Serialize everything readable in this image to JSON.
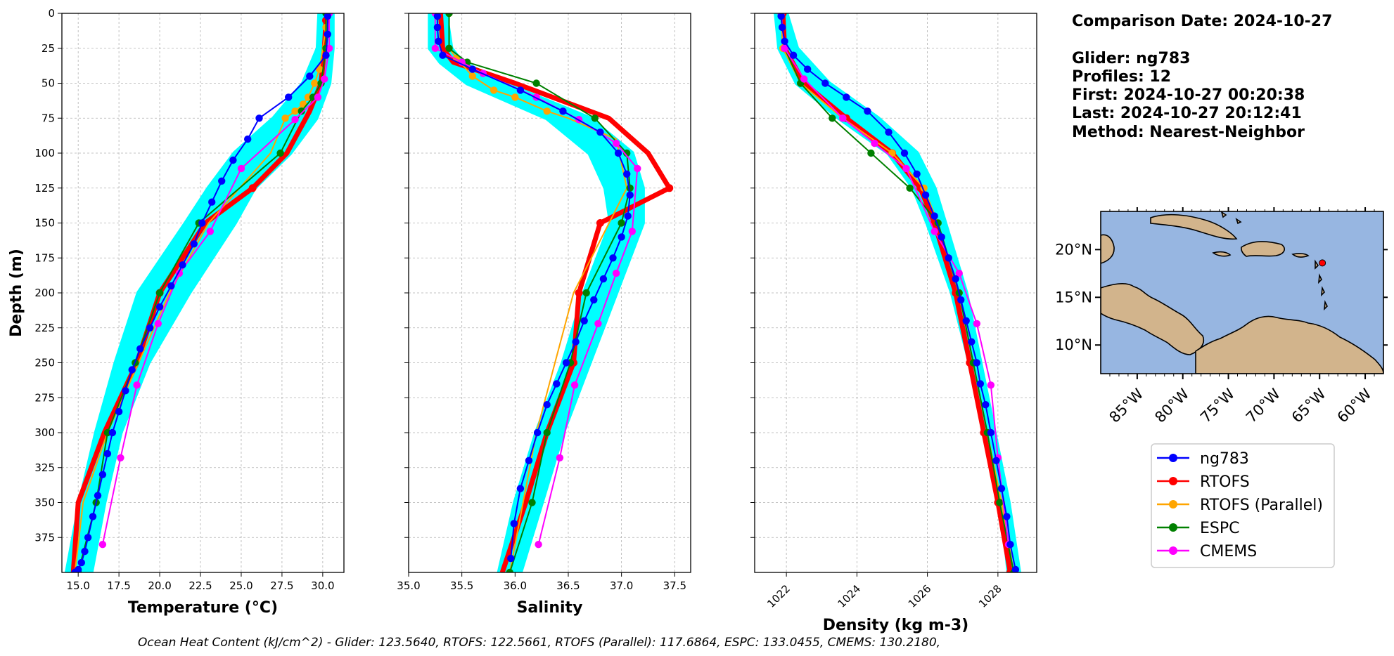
{
  "header_info": {
    "comparison": "Comparison Date: 2024-10-27",
    "glider": "Glider: ng783",
    "profiles": "Profiles: 12",
    "first": "First: 2024-10-27 00:20:38",
    "last": "Last: 2024-10-27 20:12:41",
    "method": "Method: Nearest-Neighbor"
  },
  "footer": "Ocean Heat Content (kJ/cm^2) - Glider: 123.5640,  RTOFS: 122.5661,  RTOFS (Parallel): 117.6864,  ESPC: 133.0455,  CMEMS: 130.2180,",
  "colors": {
    "glider": "#0000ff",
    "rtofs": "#ff0000",
    "rtofs_parallel": "#ffa500",
    "espc": "#008000",
    "cmems": "#ff00ff",
    "glider_band": "#00ffff",
    "ocean": "#97b6e1",
    "land": "#d2b48c"
  },
  "legend": [
    {
      "label": "ng783",
      "key": "glider"
    },
    {
      "label": "RTOFS",
      "key": "rtofs"
    },
    {
      "label": "RTOFS (Parallel)",
      "key": "rtofs_parallel"
    },
    {
      "label": "ESPC",
      "key": "espc"
    },
    {
      "label": "CMEMS",
      "key": "cmems"
    }
  ],
  "chart_data": [
    {
      "type": "line",
      "xlabel": "Temperature (°C)",
      "ylabel": "Depth (m)",
      "xlim": [
        14.0,
        31.3
      ],
      "ylim": [
        400,
        0
      ],
      "xticks": [
        15.0,
        17.5,
        20.0,
        22.5,
        25.0,
        27.5,
        30.0
      ],
      "xtick_labels": [
        "15.0",
        "17.5",
        "20.0",
        "22.5",
        "25.0",
        "27.5",
        "30.0"
      ],
      "yticks": [
        0,
        25,
        50,
        75,
        100,
        125,
        150,
        175,
        200,
        225,
        250,
        275,
        300,
        325,
        350,
        375
      ],
      "grid": true,
      "glider_band": {
        "depth": [
          0,
          25,
          50,
          75,
          100,
          125,
          150,
          200,
          250,
          300,
          350,
          400
        ],
        "lo": [
          29.8,
          29.7,
          28.8,
          27.0,
          24.6,
          23.0,
          21.6,
          18.7,
          17.3,
          16.1,
          15.1,
          14.3
        ],
        "hi": [
          30.6,
          30.6,
          30.4,
          29.6,
          28.0,
          25.8,
          24.6,
          21.8,
          19.3,
          17.6,
          16.6,
          15.8
        ]
      },
      "series": [
        {
          "name": "ng783",
          "key": "glider",
          "x": [
            30.3,
            30.3,
            30.2,
            29.2,
            27.9,
            26.1,
            25.4,
            24.5,
            23.8,
            23.2,
            22.6,
            22.1,
            21.4,
            20.7,
            20.0,
            19.4,
            18.8,
            18.3,
            17.9,
            17.5,
            17.1,
            16.8,
            16.5,
            16.2,
            15.9,
            15.6,
            15.4,
            15.2,
            15.0,
            14.8
          ],
          "y": [
            2,
            15,
            30,
            45,
            60,
            75,
            90,
            105,
            120,
            135,
            150,
            165,
            180,
            195,
            210,
            225,
            240,
            255,
            270,
            285,
            300,
            315,
            330,
            345,
            360,
            375,
            385,
            393,
            398,
            400
          ]
        },
        {
          "name": "RTOFS",
          "key": "rtofs",
          "thick": true,
          "x": [
            30.2,
            30.1,
            29.9,
            29.2,
            27.8,
            25.7,
            22.8,
            20.0,
            18.6,
            16.6,
            15.0,
            14.7
          ],
          "y": [
            5,
            25,
            50,
            70,
            100,
            125,
            150,
            200,
            250,
            300,
            350,
            400
          ],
          "marker_y": [
            5,
            125,
            200
          ]
        },
        {
          "name": "RTOFS (Parallel)",
          "key": "rtofs_parallel",
          "x": [
            30.3,
            30.2,
            29.8,
            29.5,
            29.1,
            28.8,
            28.3,
            27.7,
            26.8,
            23.0,
            20.6,
            18.7,
            16.8,
            15.3,
            14.8
          ],
          "y": [
            2,
            10,
            40,
            50,
            60,
            65,
            70,
            75,
            100,
            150,
            200,
            250,
            300,
            350,
            400
          ],
          "marker_y": [
            2,
            10,
            40,
            50,
            60,
            65,
            70,
            75
          ]
        },
        {
          "name": "ESPC",
          "key": "espc",
          "x": [
            30.2,
            30.2,
            29.9,
            29.4,
            28.7,
            27.4,
            22.4,
            20.0,
            18.5,
            16.8,
            16.1,
            15.0
          ],
          "y": [
            0,
            25,
            50,
            60,
            70,
            100,
            150,
            200,
            250,
            300,
            350,
            400
          ]
        },
        {
          "name": "CMEMS",
          "key": "cmems",
          "x": [
            30.4,
            30.4,
            30.1,
            29.7,
            28.3,
            25.0,
            23.1,
            21.2,
            19.9,
            18.6,
            17.6,
            16.5
          ],
          "y": [
            0,
            25,
            47,
            60,
            76,
            111,
            156,
            186,
            222,
            266,
            318,
            380
          ]
        }
      ]
    },
    {
      "type": "line",
      "xlabel": "Salinity",
      "xlim": [
        35.0,
        37.65
      ],
      "ylim": [
        400,
        0
      ],
      "xticks": [
        35.0,
        35.5,
        36.0,
        36.5,
        37.0,
        37.5
      ],
      "xtick_labels": [
        "35.0",
        "35.5",
        "36.0",
        "36.5",
        "37.0",
        "37.5"
      ],
      "grid": true,
      "glider_band": {
        "depth": [
          0,
          25,
          35,
          50,
          75,
          100,
          125,
          150,
          200,
          250,
          300,
          350,
          400
        ],
        "lo": [
          35.2,
          35.2,
          35.3,
          35.55,
          36.3,
          36.7,
          36.85,
          36.9,
          36.65,
          36.45,
          36.2,
          36.0,
          35.85
        ],
        "hi": [
          35.35,
          35.4,
          35.5,
          35.9,
          36.7,
          37.1,
          37.2,
          37.2,
          36.95,
          36.7,
          36.45,
          36.25,
          36.05
        ]
      },
      "series": [
        {
          "name": "ng783",
          "key": "glider",
          "x": [
            35.27,
            35.27,
            35.28,
            35.32,
            35.6,
            36.05,
            36.45,
            36.8,
            36.97,
            37.05,
            37.08,
            37.06,
            37.0,
            36.92,
            36.83,
            36.74,
            36.65,
            36.57,
            36.48,
            36.39,
            36.3,
            36.21,
            36.13,
            36.05,
            35.99,
            35.96
          ],
          "y": [
            2,
            10,
            20,
            30,
            40,
            55,
            70,
            85,
            100,
            115,
            130,
            145,
            160,
            175,
            190,
            205,
            220,
            235,
            250,
            265,
            280,
            300,
            320,
            340,
            365,
            390
          ]
        },
        {
          "name": "RTOFS",
          "key": "rtofs",
          "thick": true,
          "x": [
            35.3,
            35.32,
            35.42,
            36.0,
            36.88,
            37.25,
            37.45,
            36.8,
            36.6,
            36.55,
            36.3,
            36.1,
            35.88
          ],
          "y": [
            0,
            25,
            35,
            50,
            75,
            100,
            125,
            150,
            200,
            250,
            300,
            350,
            400
          ],
          "marker_y": [
            125,
            150,
            200,
            250
          ]
        },
        {
          "name": "RTOFS (Parallel)",
          "key": "rtofs_parallel",
          "x": [
            35.38,
            35.38,
            35.45,
            35.6,
            35.8,
            36.0,
            36.3,
            36.5,
            36.95,
            37.05,
            36.55,
            36.2,
            35.95
          ],
          "y": [
            0,
            25,
            32,
            45,
            55,
            60,
            70,
            75,
            90,
            125,
            200,
            300,
            400
          ],
          "marker_y": [
            0,
            25,
            32,
            45,
            55,
            60,
            70
          ]
        },
        {
          "name": "ESPC",
          "key": "espc",
          "x": [
            35.38,
            35.38,
            35.55,
            36.2,
            36.75,
            37.05,
            37.08,
            37.0,
            36.67,
            36.52,
            36.3,
            36.16,
            35.95
          ],
          "y": [
            0,
            25,
            35,
            50,
            75,
            100,
            125,
            150,
            200,
            250,
            300,
            350,
            400
          ]
        },
        {
          "name": "CMEMS",
          "key": "cmems",
          "x": [
            35.25,
            35.25,
            35.5,
            35.7,
            36.2,
            36.6,
            36.95,
            37.15,
            37.1,
            36.95,
            36.78,
            36.56,
            36.42,
            36.22
          ],
          "y": [
            0,
            25,
            35,
            43,
            60,
            76,
            93,
            111,
            156,
            186,
            222,
            266,
            318,
            380
          ]
        }
      ]
    },
    {
      "type": "line",
      "xlabel": "Density (kg m-3)",
      "xlim": [
        1021.1,
        1029.1
      ],
      "ylim": [
        400,
        0
      ],
      "xticks": [
        1022,
        1024,
        1026,
        1028
      ],
      "xtick_labels": [
        "1022",
        "1024",
        "1026",
        "1028"
      ],
      "grid": true,
      "glider_band": {
        "depth": [
          0,
          25,
          50,
          75,
          100,
          125,
          150,
          200,
          250,
          300,
          350,
          400
        ],
        "lo": [
          1021.7,
          1021.8,
          1022.3,
          1023.5,
          1024.9,
          1025.6,
          1026.0,
          1026.7,
          1027.2,
          1027.7,
          1028.1,
          1028.3
        ],
        "hi": [
          1022.0,
          1022.3,
          1023.2,
          1024.6,
          1025.7,
          1026.2,
          1026.5,
          1027.1,
          1027.5,
          1027.9,
          1028.3,
          1028.6
        ]
      },
      "series": [
        {
          "name": "ng783",
          "key": "glider",
          "x": [
            1021.85,
            1021.88,
            1021.95,
            1022.2,
            1022.6,
            1023.1,
            1023.7,
            1024.3,
            1024.9,
            1025.35,
            1025.7,
            1025.95,
            1026.2,
            1026.4,
            1026.6,
            1026.8,
            1026.95,
            1027.1,
            1027.25,
            1027.4,
            1027.5,
            1027.65,
            1027.8,
            1027.95,
            1028.1,
            1028.25,
            1028.35,
            1028.5
          ],
          "y": [
            2,
            10,
            20,
            30,
            40,
            50,
            60,
            70,
            85,
            100,
            115,
            130,
            145,
            160,
            175,
            190,
            205,
            220,
            235,
            250,
            265,
            280,
            300,
            320,
            340,
            360,
            380,
            398
          ]
        },
        {
          "name": "RTOFS",
          "key": "rtofs",
          "thick": true,
          "x": [
            1021.9,
            1021.95,
            1022.5,
            1023.7,
            1025.0,
            1025.8,
            1026.2,
            1026.8,
            1027.2,
            1027.6,
            1028.0,
            1028.35
          ],
          "y": [
            0,
            25,
            50,
            75,
            100,
            125,
            150,
            200,
            250,
            300,
            350,
            400
          ]
        },
        {
          "name": "RTOFS (Parallel)",
          "key": "rtofs_parallel",
          "x": [
            1021.85,
            1021.9,
            1022.4,
            1023.6,
            1025.0,
            1025.9,
            1026.3,
            1026.9,
            1027.3,
            1027.7,
            1028.1,
            1028.45
          ],
          "y": [
            0,
            25,
            50,
            75,
            100,
            125,
            150,
            200,
            250,
            300,
            350,
            400
          ]
        },
        {
          "name": "ESPC",
          "key": "espc",
          "x": [
            1021.85,
            1021.95,
            1022.4,
            1023.3,
            1024.4,
            1025.5,
            1026.3,
            1026.9,
            1027.3,
            1027.7,
            1028.05,
            1028.45
          ],
          "y": [
            0,
            25,
            50,
            75,
            100,
            125,
            150,
            200,
            250,
            300,
            350,
            400
          ]
        },
        {
          "name": "CMEMS",
          "key": "cmems",
          "x": [
            1021.85,
            1021.95,
            1022.5,
            1023.6,
            1024.5,
            1025.4,
            1026.2,
            1026.9,
            1027.4,
            1027.8,
            1028.0,
            1028.3
          ],
          "y": [
            0,
            25,
            47,
            75,
            93,
            111,
            156,
            186,
            222,
            266,
            318,
            380
          ]
        }
      ]
    }
  ],
  "map": {
    "lon_range": [
      -89,
      -58
    ],
    "lat_range": [
      7,
      24
    ],
    "lon_ticks": [
      -85,
      -80,
      -75,
      -70,
      -65,
      -60
    ],
    "lon_labels": [
      "85°W",
      "80°W",
      "75°W",
      "70°W",
      "65°W",
      "60°W"
    ],
    "lat_ticks": [
      10,
      15,
      20
    ],
    "lat_labels": [
      "10°N",
      "15°N",
      "20°N"
    ],
    "glider_position": {
      "lon": -64.7,
      "lat": 18.6
    }
  }
}
